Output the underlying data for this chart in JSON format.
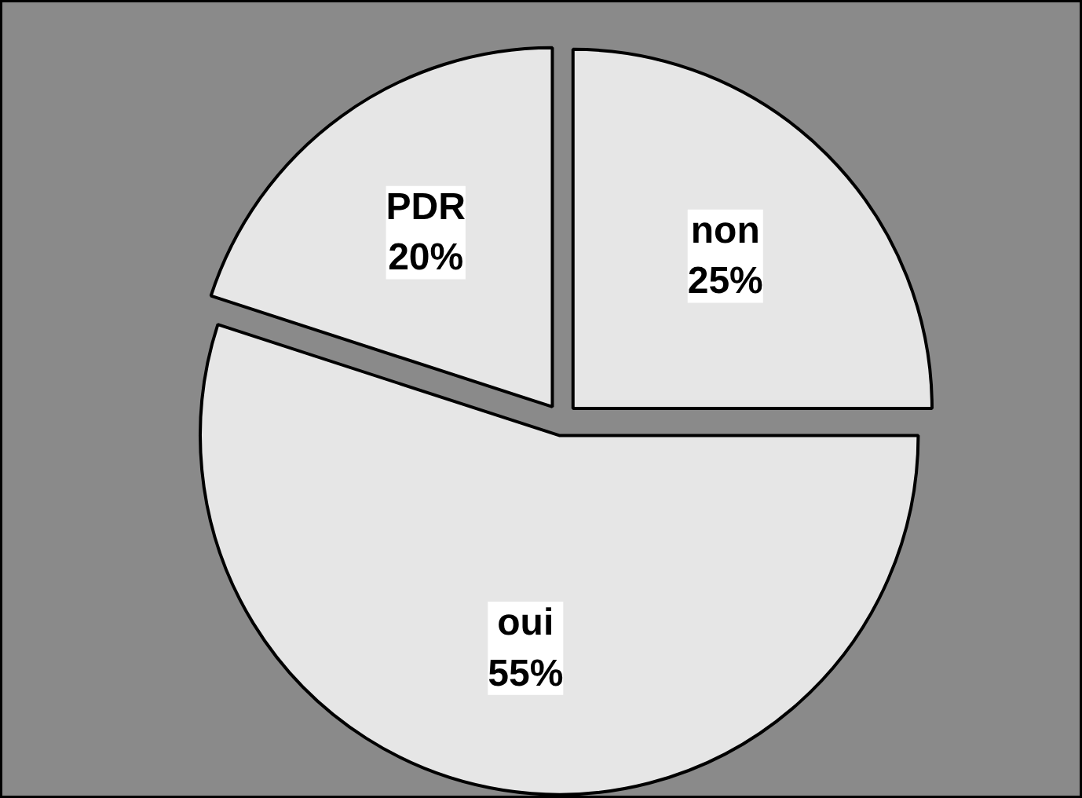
{
  "chart_data": {
    "type": "pie",
    "categories": [
      "non",
      "oui",
      "PDR"
    ],
    "values": [
      25,
      55,
      20
    ],
    "value_labels": [
      "25%",
      "55%",
      "20%"
    ],
    "colors": [
      "#e6e6e6",
      "#e6e6e6",
      "#e6e6e6"
    ]
  }
}
